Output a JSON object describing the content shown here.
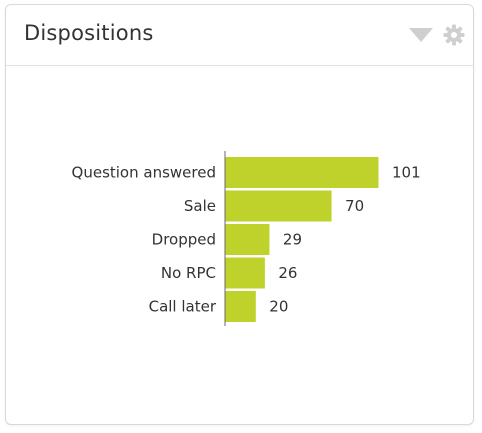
{
  "widget": {
    "title": "Dispositions",
    "icons": [
      "chevron-down-icon",
      "gear-icon"
    ]
  },
  "colors": {
    "bar": "#bfd22c",
    "axis": "#6a6a6a",
    "icon": "#cfcfcf",
    "text": "#333333"
  },
  "chart_data": {
    "type": "bar",
    "orientation": "horizontal",
    "categories": [
      "Question answered",
      "Sale",
      "Dropped",
      "No RPC",
      "Call later"
    ],
    "values": [
      101,
      70,
      29,
      26,
      20
    ],
    "data_labels": [
      "101",
      "70",
      "29",
      "26",
      "20"
    ],
    "title": "",
    "xlabel": "",
    "ylabel": "",
    "xlim": [
      0,
      101
    ],
    "grid": false,
    "legend": "none"
  }
}
